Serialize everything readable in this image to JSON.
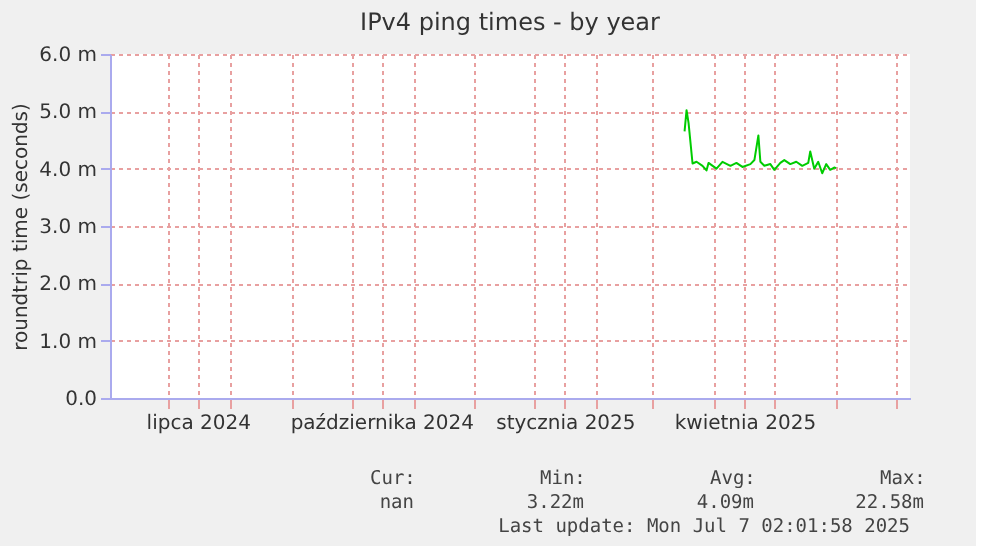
{
  "chart_data": {
    "type": "line",
    "title": "IPv4 ping times - by year",
    "ylabel": "roundtrip time (seconds)",
    "x": [
      "2025-03-17",
      "2025-03-18",
      "2025-03-19",
      "2025-03-21",
      "2025-03-23",
      "2025-03-26",
      "2025-03-28",
      "2025-03-29",
      "2025-04-02",
      "2025-04-05",
      "2025-04-09",
      "2025-04-12",
      "2025-04-15",
      "2025-04-19",
      "2025-04-21",
      "2025-04-23",
      "2025-04-24",
      "2025-04-26",
      "2025-04-29",
      "2025-05-01",
      "2025-05-04",
      "2025-05-06",
      "2025-05-09",
      "2025-05-12",
      "2025-05-15",
      "2025-05-18",
      "2025-05-19",
      "2025-05-21",
      "2025-05-23",
      "2025-05-25",
      "2025-05-27",
      "2025-05-29",
      "2025-05-31",
      "2025-06-01"
    ],
    "series": [
      {
        "color": "#00cc00",
        "values": [
          4.65,
          5.02,
          4.8,
          4.09,
          4.12,
          4.05,
          3.97,
          4.1,
          4.0,
          4.12,
          4.05,
          4.1,
          4.03,
          4.08,
          4.15,
          4.58,
          4.12,
          4.05,
          4.08,
          3.98,
          4.1,
          4.15,
          4.08,
          4.12,
          4.05,
          4.1,
          4.3,
          4.0,
          4.12,
          3.92,
          4.08,
          3.98,
          4.02,
          4.01
        ]
      }
    ],
    "xlim": [
      "2024-06-02",
      "2025-07-08"
    ],
    "xticks": [
      {
        "value": "2024-07-01",
        "label": null
      },
      {
        "value": "2024-07-16",
        "label": "lipca 2024"
      },
      {
        "value": "2024-08-01",
        "label": null
      },
      {
        "value": "2024-09-01",
        "label": null
      },
      {
        "value": "2024-10-01",
        "label": null
      },
      {
        "value": "2024-10-16",
        "label": "października 2024"
      },
      {
        "value": "2024-11-01",
        "label": null
      },
      {
        "value": "2024-12-01",
        "label": null
      },
      {
        "value": "2025-01-01",
        "label": null
      },
      {
        "value": "2025-01-16",
        "label": "stycznia 2025"
      },
      {
        "value": "2025-02-01",
        "label": null
      },
      {
        "value": "2025-03-01",
        "label": null
      },
      {
        "value": "2025-04-01",
        "label": null
      },
      {
        "value": "2025-04-16",
        "label": "kwietnia 2025"
      },
      {
        "value": "2025-05-01",
        "label": null
      },
      {
        "value": "2025-06-01",
        "label": null
      },
      {
        "value": "2025-07-01",
        "label": null
      }
    ],
    "ylim": [
      0,
      6
    ],
    "yticks": [
      {
        "value": 0,
        "label": "0.0"
      },
      {
        "value": 1,
        "label": "1.0 m"
      },
      {
        "value": 2,
        "label": "2.0 m"
      },
      {
        "value": 3,
        "label": "3.0 m"
      },
      {
        "value": 4,
        "label": "4.0 m"
      },
      {
        "value": 5,
        "label": "5.0 m"
      },
      {
        "value": 6,
        "label": "6.0 m"
      }
    ],
    "grid": true,
    "marker": "none",
    "line_style": "solid",
    "annotations": [
      "Cur:",
      "Min:",
      "Avg:",
      "Max:",
      "nan",
      "3.22m",
      "4.09m",
      "22.58m",
      "Last update: Mon Jul  7 02:01:58 2025"
    ]
  }
}
